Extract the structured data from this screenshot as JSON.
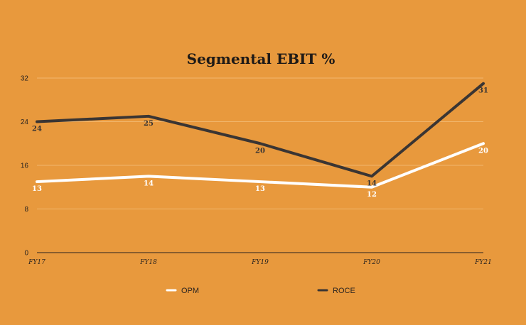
{
  "chart_data": {
    "type": "line",
    "title": "Segmental EBIT %",
    "categories": [
      "FY17",
      "FY18",
      "FY19",
      "FY20",
      "FY21"
    ],
    "series": [
      {
        "name": "OPM",
        "values": [
          13,
          14,
          13,
          12,
          20
        ],
        "color": "#FFFFFF"
      },
      {
        "name": "ROCE",
        "values": [
          24,
          25,
          20,
          14,
          31
        ],
        "color": "#3A3533"
      }
    ],
    "ylim": [
      0,
      32
    ],
    "yticks": [
      0,
      8,
      16,
      24,
      32
    ],
    "grid": true,
    "legend": "bottom",
    "background": "#E8993D"
  }
}
